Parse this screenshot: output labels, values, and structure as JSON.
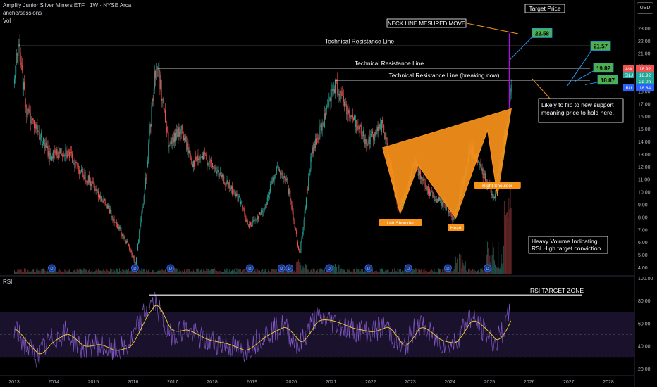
{
  "header": {
    "symbol_title": "Amplify Junior Silver Miners ETF · 1W · NYSE Arca",
    "line2": "anche/sessions",
    "line3": "Vol",
    "currency": "USD"
  },
  "colors": {
    "up": "#26a69a",
    "down": "#ef5350",
    "pattern": "#f7931a",
    "rsi": "#7e57c2",
    "rsi_ma": "#e8c530",
    "target_box": "#4caf50",
    "ask": "#ef5350",
    "bid": "#2962ff",
    "last": "#26a69a",
    "move_line": "#c000ff"
  },
  "chart_data": [
    {
      "type": "candlestick",
      "timeframe": "1W",
      "ylim": [
        3.5,
        24.5
      ],
      "y_ticks": [
        "23.00",
        "22.00",
        "21.00",
        "20.00",
        "19.00",
        "18.00",
        "17.00",
        "16.00",
        "15.00",
        "14.00",
        "13.00",
        "12.00",
        "11.00",
        "10.00",
        "9.00",
        "8.00",
        "7.00",
        "6.00",
        "5.00",
        "4.00"
      ],
      "x_ticks": [
        "2013",
        "2014",
        "2015",
        "2016",
        "2017",
        "2018",
        "2019",
        "2020",
        "2021",
        "2022",
        "2023",
        "2024",
        "2025",
        "2026",
        "2027",
        "2028"
      ],
      "price_path": [
        [
          2013.0,
          18.6
        ],
        [
          2013.1,
          21.6
        ],
        [
          2013.3,
          16.5
        ],
        [
          2013.6,
          14.8
        ],
        [
          2013.9,
          12.8
        ],
        [
          2014.3,
          13.3
        ],
        [
          2014.7,
          11.5
        ],
        [
          2015.0,
          10.5
        ],
        [
          2015.3,
          9.0
        ],
        [
          2015.7,
          6.8
        ],
        [
          2016.0,
          4.8
        ],
        [
          2016.05,
          4.1
        ],
        [
          2016.3,
          10.5
        ],
        [
          2016.55,
          19.5
        ],
        [
          2016.62,
          19.95
        ],
        [
          2016.9,
          13.5
        ],
        [
          2017.2,
          15.0
        ],
        [
          2017.5,
          12.3
        ],
        [
          2017.8,
          12.8
        ],
        [
          2018.2,
          11.2
        ],
        [
          2018.7,
          9.3
        ],
        [
          2018.9,
          7.2
        ],
        [
          2019.3,
          8.6
        ],
        [
          2019.6,
          11.8
        ],
        [
          2019.9,
          10.6
        ],
        [
          2020.2,
          5.0
        ],
        [
          2020.5,
          13.0
        ],
        [
          2020.8,
          15.5
        ],
        [
          2021.1,
          18.6
        ],
        [
          2021.4,
          16.5
        ],
        [
          2021.9,
          14.0
        ],
        [
          2022.3,
          15.3
        ],
        [
          2022.7,
          8.3
        ],
        [
          2023.1,
          12.2
        ],
        [
          2023.5,
          9.8
        ],
        [
          2023.9,
          8.8
        ],
        [
          2024.1,
          7.8
        ],
        [
          2024.5,
          13.5
        ],
        [
          2024.9,
          11.0
        ],
        [
          2025.1,
          9.5
        ],
        [
          2025.45,
          15.5
        ],
        [
          2025.55,
          18.92
        ]
      ],
      "last_prices": {
        "ask": "18.92",
        "last": "18.92",
        "countdown": "2d 0h",
        "bid": "18.84",
        "symbol": "SILJ",
        "ask_label": "Ask",
        "bid_label": "Bid"
      },
      "resistance_lines": [
        {
          "label": "Technical Resistance Line",
          "value": 21.57,
          "from": 2013.1
        },
        {
          "label": "Technical Resistance Line",
          "value": 19.82,
          "from": 2016.62
        },
        {
          "label": "Technical Resistance Line (breaking now)",
          "value": 18.87,
          "from": 2021.1
        }
      ],
      "target_boxes": [
        "22.58",
        "21.57",
        "19.82",
        "18.87"
      ],
      "target_price_label": "Target Price",
      "neckline_label": "NECK LINE MESURED MOVE",
      "support_note": [
        "Likely to flip to new support",
        "meaning price to hold here."
      ],
      "volume_note": [
        "Heavy Volume Indicating",
        "RSI High target conviction"
      ],
      "pattern": {
        "name": "Inverse head and shoulders",
        "labels": {
          "left": "Left Shoulder",
          "head": "Head",
          "right": "Right Shoulder"
        },
        "points": [
          [
            2022.3,
            13.5
          ],
          [
            2022.75,
            8.3
          ],
          [
            2023.2,
            12.1
          ],
          [
            2024.15,
            7.9
          ],
          [
            2024.95,
            14.9
          ],
          [
            2025.2,
            9.7
          ],
          [
            2025.55,
            16.6
          ]
        ]
      },
      "dividend_marker": "D",
      "dividends": [
        2013.95,
        2016.05,
        2016.95,
        2018.95,
        2019.75,
        2019.95,
        2020.95,
        2021.95,
        2022.95,
        2023.95,
        2024.95
      ]
    },
    {
      "type": "line",
      "title": "RSI",
      "ylim": [
        15,
        100
      ],
      "y_ticks": [
        "100.00",
        "80.00",
        "60.00",
        "40.00",
        "20.00"
      ],
      "band": [
        30,
        70
      ],
      "target_label": "RSI TARGET ZONE",
      "target_value": 85,
      "path": [
        [
          2013.0,
          55
        ],
        [
          2013.3,
          40
        ],
        [
          2013.6,
          30
        ],
        [
          2013.9,
          45
        ],
        [
          2014.3,
          52
        ],
        [
          2014.7,
          38
        ],
        [
          2015.1,
          42
        ],
        [
          2015.5,
          35
        ],
        [
          2015.9,
          40
        ],
        [
          2016.3,
          70
        ],
        [
          2016.55,
          80
        ],
        [
          2016.9,
          50
        ],
        [
          2017.3,
          55
        ],
        [
          2017.8,
          45
        ],
        [
          2018.3,
          42
        ],
        [
          2018.8,
          35
        ],
        [
          2019.3,
          50
        ],
        [
          2019.8,
          58
        ],
        [
          2020.2,
          40
        ],
        [
          2020.6,
          65
        ],
        [
          2021.0,
          62
        ],
        [
          2021.5,
          55
        ],
        [
          2022.0,
          52
        ],
        [
          2022.4,
          58
        ],
        [
          2022.8,
          36
        ],
        [
          2023.2,
          60
        ],
        [
          2023.7,
          44
        ],
        [
          2024.1,
          42
        ],
        [
          2024.5,
          66
        ],
        [
          2024.9,
          52
        ],
        [
          2025.15,
          42
        ],
        [
          2025.4,
          58
        ],
        [
          2025.55,
          72
        ]
      ]
    }
  ]
}
